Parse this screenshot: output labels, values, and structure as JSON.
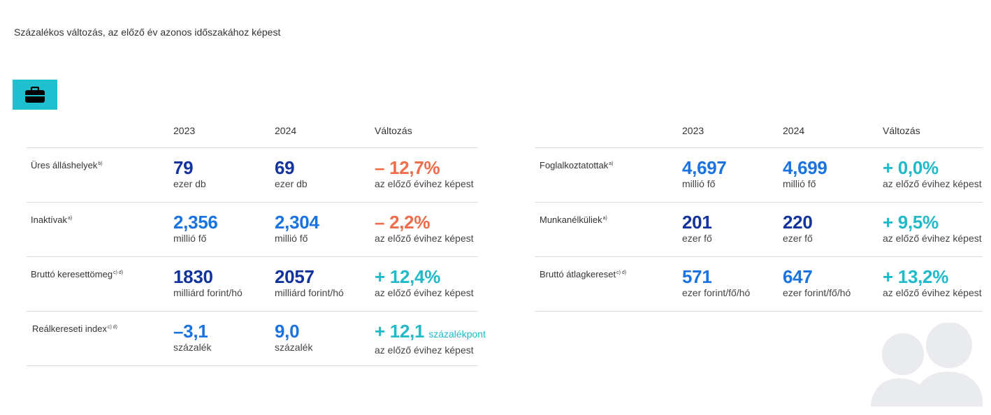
{
  "subtitle": "Százalékos változás, az előző év azonos időszakához képest",
  "colors": {
    "dark_blue": "#13339c",
    "mid_blue": "#1a73e0",
    "orange": "#ef6d49",
    "teal": "#22b9c8",
    "badge": "#1ec0d0",
    "people_icon": "#e9ebee"
  },
  "icons": {
    "badge_icon": "briefcase-icon",
    "decor_icon": "people-icon"
  },
  "left": {
    "headers": {
      "y1": "2023",
      "y2": "2024",
      "change": "Változás"
    },
    "rows": [
      {
        "label": "Üres álláshelyek",
        "note": "b)",
        "v1": "79",
        "u1": "ezer db",
        "v2": "69",
        "u2": "ezer db",
        "change": "– 12,7%",
        "change_note": "",
        "change_sub": "az előző évihez képest"
      },
      {
        "label": "Inaktívak",
        "note": "a)",
        "v1": "2,356",
        "u1": "millió fő",
        "v2": "2,304",
        "u2": "millió fő",
        "change": "– 2,2%",
        "change_note": "",
        "change_sub": "az előző évihez képest"
      },
      {
        "label": "Bruttó keresettömeg",
        "note": "c) d)",
        "v1": "1830",
        "u1": "milliárd forint/hó",
        "v2": "2057",
        "u2": "milliárd forint/hó",
        "change": "+ 12,4%",
        "change_note": "",
        "change_sub": "az előző évihez képest"
      },
      {
        "label": "Reálkereseti index",
        "note": "c) d)",
        "v1": "–3,1",
        "u1": "százalék",
        "v2": "9,0",
        "u2": "százalék",
        "change": "+ 12,1",
        "change_note": "százalékpont",
        "change_sub": "az előző évihez képest"
      }
    ]
  },
  "right": {
    "headers": {
      "y1": "2023",
      "y2": "2024",
      "change": "Változás"
    },
    "rows": [
      {
        "label": "Foglalkoztatottak",
        "note": "a)",
        "v1": "4,697",
        "u1": "millió fő",
        "v2": "4,699",
        "u2": "millió fő",
        "change": "+ 0,0%",
        "change_sub": "az előző évihez képest"
      },
      {
        "label": "Munkanélküliek",
        "note": "a)",
        "v1": "201",
        "u1": "ezer fő",
        "v2": "220",
        "u2": "ezer fő",
        "change": "+ 9,5%",
        "change_sub": "az előző évihez képest"
      },
      {
        "label": "Bruttó átlagkereset",
        "note": "c) d)",
        "v1": "571",
        "u1": "ezer forint/fő/hó",
        "v2": "647",
        "u2": "ezer forint/fő/hó",
        "change": "+ 13,2%",
        "change_sub": "az előző évihez képest"
      }
    ]
  }
}
